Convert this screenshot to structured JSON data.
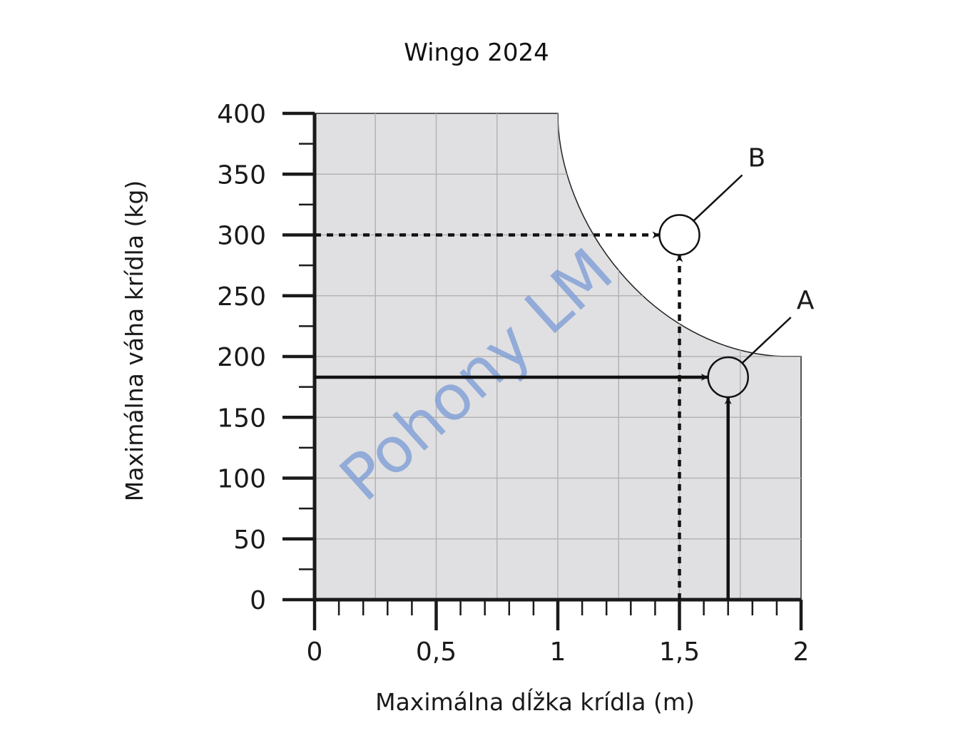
{
  "chart_data": {
    "type": "area",
    "title": "Wingo 2024",
    "xlabel": "Maximálna dĺžka krídla (m)",
    "ylabel": "Maximálna váha krídla (kg)",
    "xlim": [
      0,
      2
    ],
    "ylim": [
      0,
      400
    ],
    "x_ticks": [
      {
        "value": 0,
        "label": "0"
      },
      {
        "value": 0.5,
        "label": "0,5"
      },
      {
        "value": 1,
        "label": "1"
      },
      {
        "value": 1.5,
        "label": "1,5"
      },
      {
        "value": 2,
        "label": "2"
      }
    ],
    "y_ticks": [
      {
        "value": 0,
        "label": "0"
      },
      {
        "value": 50,
        "label": "50"
      },
      {
        "value": 100,
        "label": "100"
      },
      {
        "value": 150,
        "label": "150"
      },
      {
        "value": 200,
        "label": "200"
      },
      {
        "value": 250,
        "label": "250"
      },
      {
        "value": 300,
        "label": "300"
      },
      {
        "value": 350,
        "label": "350"
      },
      {
        "value": 400,
        "label": "400"
      }
    ],
    "grid": true,
    "allowed_region": {
      "flat_top": {
        "x": [
          0,
          1
        ],
        "y": 400
      },
      "curve": {
        "from": [
          1,
          400
        ],
        "to": [
          2,
          200
        ]
      },
      "right_edge": {
        "x": 2,
        "y": [
          0,
          200
        ]
      }
    },
    "points": [
      {
        "label": "A",
        "x": 1.7,
        "y": 183,
        "line_style": "solid",
        "inside_region": true
      },
      {
        "label": "B",
        "x": 1.5,
        "y": 300,
        "line_style": "dashed",
        "inside_region": false
      }
    ],
    "watermark": "Pohony LM",
    "colors": {
      "region_fill": "#e0e0e2",
      "grid": "#b4b4b4",
      "axis": "#1a1a1a",
      "watermark": "#7f9fd6"
    }
  }
}
